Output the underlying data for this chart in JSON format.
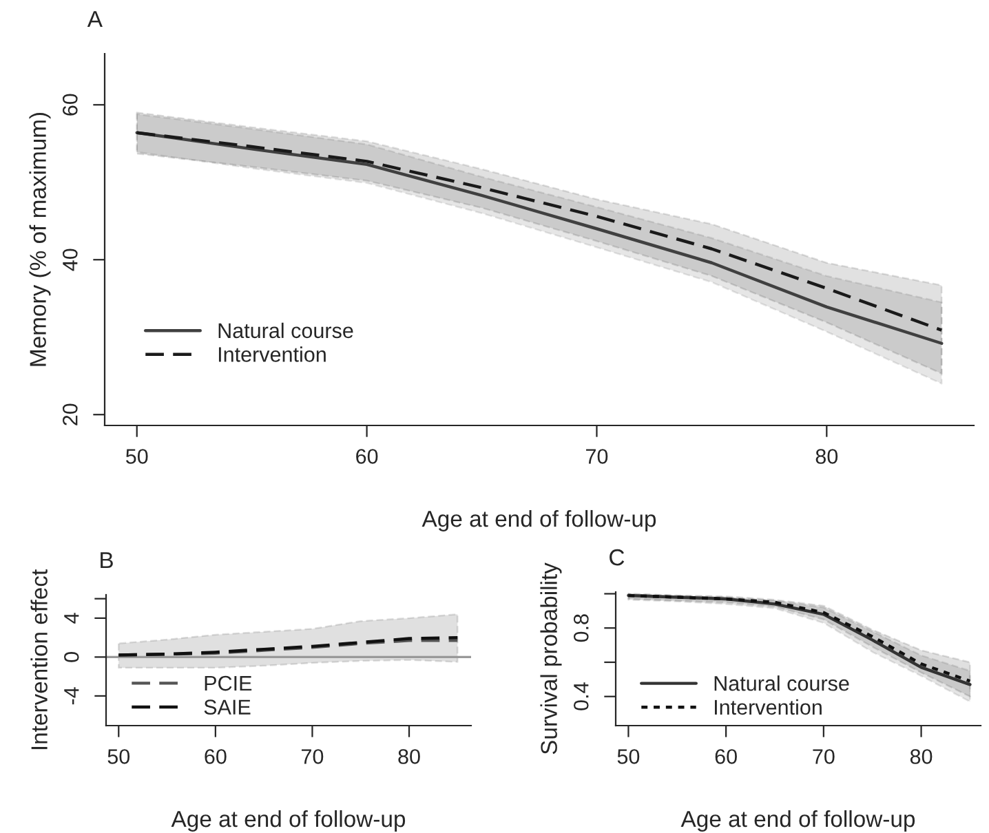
{
  "chart_data": [
    {
      "type": "line",
      "title": "A",
      "xlabel": "Age at end of follow-up",
      "ylabel": "Memory (% of maximum)",
      "x": [
        50,
        55,
        60,
        65,
        70,
        75,
        80,
        85
      ],
      "xlim": [
        48.6,
        86.4
      ],
      "ylim": [
        18.6,
        66.6
      ],
      "xticks": [
        50,
        60,
        70,
        80
      ],
      "yticks": [
        20,
        40,
        60
      ],
      "legend": "bottom left",
      "grid": false,
      "series": [
        {
          "name": "Natural course",
          "color": "#404040",
          "line_style": "solid",
          "values": [
            56.4,
            54.3,
            52.3,
            48.3,
            44.0,
            39.6,
            33.9,
            29.2
          ],
          "lower": [
            53.9,
            51.8,
            49.9,
            46.0,
            41.6,
            37.1,
            30.7,
            24.0
          ],
          "upper": [
            58.8,
            56.9,
            54.9,
            50.7,
            46.8,
            42.8,
            37.9,
            34.5
          ]
        },
        {
          "name": "Intervention",
          "color": "#1a1a1a",
          "line_style": "dashed",
          "values": [
            56.4,
            54.6,
            52.7,
            49.3,
            45.6,
            41.4,
            36.3,
            30.9
          ],
          "lower": [
            53.7,
            52.0,
            50.2,
            46.7,
            42.4,
            37.9,
            31.9,
            25.3
          ],
          "upper": [
            59.0,
            57.1,
            55.3,
            51.7,
            47.8,
            44.6,
            39.6,
            36.7
          ]
        }
      ]
    },
    {
      "type": "line",
      "title": "B",
      "xlabel": "Age at end of follow-up",
      "ylabel": "Intervention effect",
      "x": [
        50,
        55,
        60,
        65,
        70,
        75,
        80,
        85
      ],
      "xlim": [
        48.7,
        86.4
      ],
      "ylim": [
        -7.05,
        6.4
      ],
      "xticks": [
        50,
        60,
        70,
        80
      ],
      "yticks": [
        -4,
        0,
        4,
        {
          "value": 6,
          "label": null
        }
      ],
      "legend": "bottom left",
      "grid": false,
      "ref_lines": [
        {
          "axis": "y",
          "value": 0,
          "color": "#999999",
          "line_style": "solid"
        }
      ],
      "series": [
        {
          "name": "PCIE",
          "color": "#555555",
          "line_style": "dashed",
          "values": [
            0.2,
            0.3,
            0.4,
            0.7,
            1.0,
            1.4,
            1.7,
            1.7
          ]
        },
        {
          "name": "SAIE",
          "color": "#111111",
          "line_style": "dashed",
          "values": [
            0.2,
            0.3,
            0.5,
            0.8,
            1.1,
            1.5,
            1.9,
            2.0
          ],
          "lower": [
            -1.1,
            -1.1,
            -1.1,
            -0.9,
            -0.6,
            -0.4,
            -0.3,
            -0.5
          ],
          "upper": [
            1.4,
            1.8,
            2.3,
            2.6,
            2.9,
            3.7,
            4.0,
            4.4
          ]
        }
      ]
    },
    {
      "type": "line",
      "title": "C",
      "xlabel": "Age at end of follow-up",
      "ylabel": "Survival probability",
      "x": [
        50,
        55,
        60,
        65,
        70,
        75,
        80,
        85
      ],
      "xlim": [
        48.7,
        86.1
      ],
      "ylim": [
        0.23,
        1.01
      ],
      "xticks": [
        50,
        60,
        70,
        80
      ],
      "yticks": [
        0.4,
        {
          "value": 0.6,
          "label": null
        },
        0.8,
        {
          "value": 1.0,
          "label": null
        }
      ],
      "legend": "bottom left",
      "grid": false,
      "series": [
        {
          "name": "Natural course",
          "color": "#333333",
          "line_style": "solid",
          "values": [
            0.99,
            0.98,
            0.97,
            0.94,
            0.88,
            0.73,
            0.57,
            0.47
          ],
          "lower": [
            0.965,
            0.955,
            0.94,
            0.915,
            0.83,
            0.66,
            0.52,
            0.37
          ],
          "upper": [
            1.0,
            0.99,
            0.98,
            0.96,
            0.92,
            0.78,
            0.64,
            0.55
          ]
        },
        {
          "name": "Intervention",
          "color": "#111111",
          "line_style": "dotted",
          "values": [
            0.99,
            0.98,
            0.97,
            0.95,
            0.89,
            0.75,
            0.59,
            0.49
          ],
          "lower": [
            0.97,
            0.96,
            0.95,
            0.925,
            0.85,
            0.69,
            0.54,
            0.4
          ],
          "upper": [
            1.0,
            0.99,
            0.985,
            0.965,
            0.93,
            0.79,
            0.67,
            0.6
          ]
        }
      ]
    }
  ]
}
